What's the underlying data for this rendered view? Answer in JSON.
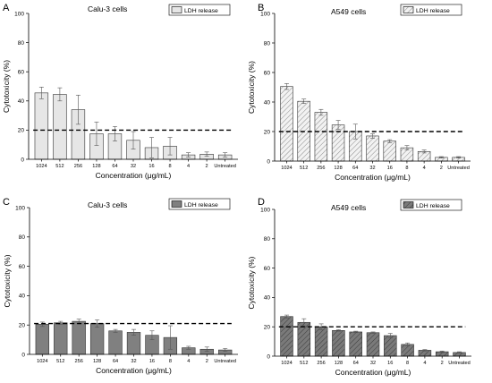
{
  "chart_data": [
    {
      "type": "bar",
      "panel_letter": "A",
      "title": "Calu-3 cells",
      "xlabel": "Concentration (μg/mL)",
      "ylabel": "Cytotoxicity (%)",
      "ylim": [
        0,
        100
      ],
      "yticks": [
        0,
        20,
        40,
        60,
        80,
        100
      ],
      "categories": [
        "1024",
        "512",
        "256",
        "128",
        "64",
        "32",
        "16",
        "8",
        "4",
        "2",
        "Untreated"
      ],
      "series": [
        {
          "name": "LDH release",
          "values": [
            45.5,
            44.5,
            34,
            17.5,
            17.5,
            13,
            8,
            9,
            3,
            3.5,
            3
          ],
          "errors": [
            4,
            4.5,
            10,
            8,
            5,
            6,
            7,
            6,
            1.5,
            1.5,
            1.5
          ]
        }
      ],
      "reference_line": 20,
      "fill": "#e6e6e6",
      "pattern": "solid",
      "legend_position": "top-right",
      "grid": false
    },
    {
      "type": "bar",
      "panel_letter": "B",
      "title": "A549 cells",
      "xlabel": "Concentration (μg/mL)",
      "ylabel": "Cytotoxicity (%)",
      "ylim": [
        0,
        100
      ],
      "yticks": [
        0,
        20,
        40,
        60,
        80,
        100
      ],
      "categories": [
        "1024",
        "512",
        "256",
        "128",
        "64",
        "32",
        "16",
        "8",
        "4",
        "2",
        "Untreated"
      ],
      "series": [
        {
          "name": "LDH release",
          "values": [
            50.5,
            40.5,
            33,
            24.5,
            20,
            17,
            13.5,
            9,
            6.5,
            2.5,
            2.5
          ],
          "errors": [
            2,
            1.5,
            2,
            3,
            5,
            1.5,
            1,
            1.5,
            1,
            0.5,
            0.5
          ]
        }
      ],
      "reference_line": 20,
      "fill": "#f2f2f2",
      "pattern": "hatch",
      "legend_position": "top-right",
      "grid": false
    },
    {
      "type": "bar",
      "panel_letter": "C",
      "title": "Calu-3 cells",
      "xlabel": "Concentration (μg/mL)",
      "ylabel": "Cytotoxicity (%)",
      "ylim": [
        0,
        100
      ],
      "yticks": [
        0,
        20,
        40,
        60,
        80,
        100
      ],
      "categories": [
        "1024",
        "512",
        "256",
        "128",
        "64",
        "32",
        "16",
        "8",
        "4",
        "2",
        "Untreated"
      ],
      "series": [
        {
          "name": "LDH release",
          "values": [
            20.5,
            21.5,
            22.5,
            21,
            16,
            15,
            13,
            11.5,
            4.5,
            3.5,
            3
          ],
          "errors": [
            1.5,
            1,
            1.5,
            2.5,
            1,
            2,
            3,
            8,
            1,
            1.5,
            1
          ]
        }
      ],
      "reference_line": 21,
      "fill": "#808080",
      "pattern": "solid",
      "legend_position": "top-right",
      "grid": false
    },
    {
      "type": "bar",
      "panel_letter": "D",
      "title": "A549 cells",
      "xlabel": "Concentration (μg/mL)",
      "ylabel": "Cytotoxicity (%)",
      "ylim": [
        0,
        100
      ],
      "yticks": [
        0,
        20,
        40,
        60,
        80,
        100
      ],
      "categories": [
        "1024",
        "512",
        "256",
        "128",
        "64",
        "32",
        "16",
        "8",
        "4",
        "2",
        "Untreated"
      ],
      "series": [
        {
          "name": "LDH release",
          "values": [
            27,
            23,
            20,
            17.5,
            16.5,
            16,
            14,
            8,
            4,
            3,
            2.5
          ],
          "errors": [
            1,
            2.5,
            2,
            0.5,
            0.5,
            0.5,
            1.5,
            1,
            0.5,
            0.5,
            0.5
          ]
        }
      ],
      "reference_line": 20,
      "fill": "#7a7a7a",
      "pattern": "hatch",
      "legend_position": "top-right",
      "grid": false
    }
  ]
}
